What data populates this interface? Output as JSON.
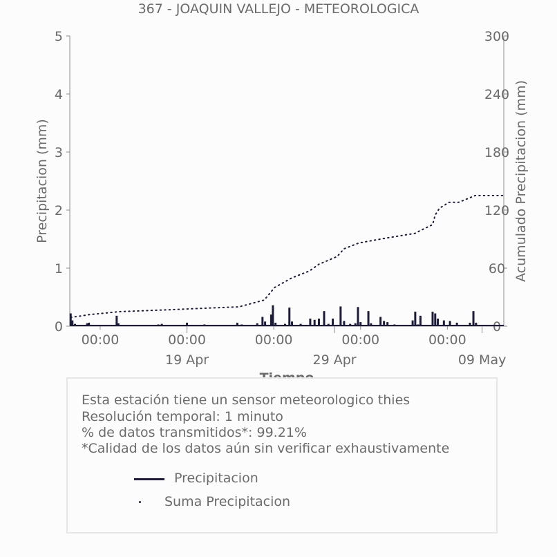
{
  "chart_data": {
    "type": "line",
    "title": "367 - JOAQUIN VALLEJO - METEOROLOGICA",
    "xlabel": "Tiempo",
    "ylabel_left": "Precipitacion (mm)",
    "ylabel_right": "Acumulado Precipitacion (mm)",
    "ylim_left": [
      0,
      5
    ],
    "ylim_right": [
      0,
      300
    ],
    "y_ticks_left": [
      "0",
      "1",
      "2",
      "3",
      "4",
      "5"
    ],
    "y_ticks_right": [
      "0",
      "60",
      "120",
      "180",
      "240",
      "300"
    ],
    "x_range_days": [
      0,
      50
    ],
    "x_time_ticks": [
      {
        "day": 3.5,
        "label": "00:00"
      },
      {
        "day": 13.5,
        "label": "00:00"
      },
      {
        "day": 23.5,
        "label": "00:00"
      },
      {
        "day": 33.5,
        "label": "00:00"
      },
      {
        "day": 43.5,
        "label": "00:00"
      }
    ],
    "x_date_ticks": [
      {
        "day": 13.5,
        "label": "19 Apr"
      },
      {
        "day": 30.5,
        "label": "29 Apr"
      },
      {
        "day": 47.5,
        "label": "09 May"
      }
    ],
    "grid": false,
    "series": [
      {
        "name": "Precipitacion",
        "style": "solid",
        "color": "#1c1c3a",
        "points": [
          [
            0.1,
            0.22
          ],
          [
            0.3,
            0.1
          ],
          [
            0.6,
            0.04
          ],
          [
            2.0,
            0.05
          ],
          [
            2.2,
            0.06
          ],
          [
            3.8,
            0.02
          ],
          [
            5.4,
            0.18
          ],
          [
            5.6,
            0.05
          ],
          [
            10.2,
            0.03
          ],
          [
            10.6,
            0.04
          ],
          [
            13.5,
            0.06
          ],
          [
            15.5,
            0.03
          ],
          [
            16.0,
            0.02
          ],
          [
            19.3,
            0.06
          ],
          [
            19.8,
            0.03
          ],
          [
            21.6,
            0.05
          ],
          [
            22.2,
            0.16
          ],
          [
            22.5,
            0.08
          ],
          [
            23.2,
            0.2
          ],
          [
            23.4,
            0.36
          ],
          [
            23.7,
            0.06
          ],
          [
            24.8,
            0.04
          ],
          [
            25.3,
            0.32
          ],
          [
            25.6,
            0.08
          ],
          [
            26.6,
            0.04
          ],
          [
            27.7,
            0.13
          ],
          [
            28.2,
            0.11
          ],
          [
            28.7,
            0.13
          ],
          [
            29.3,
            0.26
          ],
          [
            29.8,
            0.04
          ],
          [
            30.3,
            0.13
          ],
          [
            31.2,
            0.34
          ],
          [
            31.6,
            0.09
          ],
          [
            32.3,
            0.04
          ],
          [
            32.9,
            0.05
          ],
          [
            33.2,
            0.33
          ],
          [
            33.5,
            0.07
          ],
          [
            34.4,
            0.26
          ],
          [
            34.7,
            0.05
          ],
          [
            35.8,
            0.16
          ],
          [
            36.2,
            0.09
          ],
          [
            36.6,
            0.07
          ],
          [
            37.4,
            0.03
          ],
          [
            39.5,
            0.1
          ],
          [
            39.8,
            0.25
          ],
          [
            40.1,
            0.03
          ],
          [
            40.4,
            0.18
          ],
          [
            41.8,
            0.25
          ],
          [
            42.1,
            0.22
          ],
          [
            42.4,
            0.13
          ],
          [
            43.1,
            0.1
          ],
          [
            43.8,
            0.09
          ],
          [
            44.6,
            0.06
          ],
          [
            46.1,
            0.06
          ],
          [
            46.5,
            0.26
          ],
          [
            46.8,
            0.06
          ]
        ]
      },
      {
        "name": "Suma Precipitacion",
        "style": "dotted",
        "color": "#1c1c3a",
        "points": [
          [
            0.1,
            9
          ],
          [
            2.3,
            12
          ],
          [
            5.7,
            15
          ],
          [
            11.5,
            17
          ],
          [
            14.0,
            18
          ],
          [
            19.5,
            20
          ],
          [
            22.4,
            27
          ],
          [
            23.6,
            40
          ],
          [
            25.6,
            50
          ],
          [
            27.6,
            57
          ],
          [
            28.7,
            64
          ],
          [
            30.8,
            72
          ],
          [
            31.6,
            80
          ],
          [
            33.3,
            86
          ],
          [
            36.4,
            91
          ],
          [
            39.8,
            96
          ],
          [
            40.2,
            98
          ],
          [
            41.8,
            105
          ],
          [
            42.1,
            115
          ],
          [
            42.6,
            122
          ],
          [
            43.7,
            128
          ],
          [
            44.8,
            128
          ],
          [
            46.7,
            135
          ],
          [
            50.0,
            135
          ]
        ]
      }
    ]
  },
  "info": {
    "line1": "Esta estación tiene un sensor meteorologico thies",
    "line2": "Resolución temporal: 1 minuto",
    "line3": "% de datos transmitidos*: 99.21%",
    "line4": "*Calidad de los datos aún sin verificar exhaustivamente"
  },
  "legend": {
    "precip": "Precipitacion",
    "sum": "Suma Precipitacion"
  }
}
